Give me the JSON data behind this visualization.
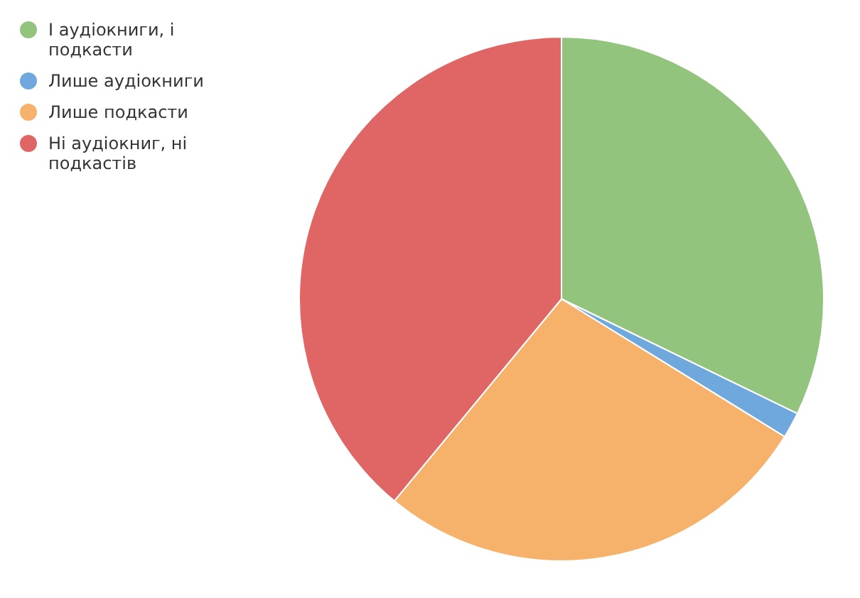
{
  "chart_data": {
    "type": "pie",
    "categories": [
      "І аудіокниги, і подкасти",
      "Лише аудіокниги",
      "Лише подкасти",
      "Ні аудіокниг, ні подкастів"
    ],
    "values": [
      32.2,
      1.6,
      27.2,
      39
    ],
    "colors": [
      "#93c47d",
      "#6fa8dc",
      "#f6b26b",
      "#e06666"
    ],
    "legend": "top left"
  }
}
